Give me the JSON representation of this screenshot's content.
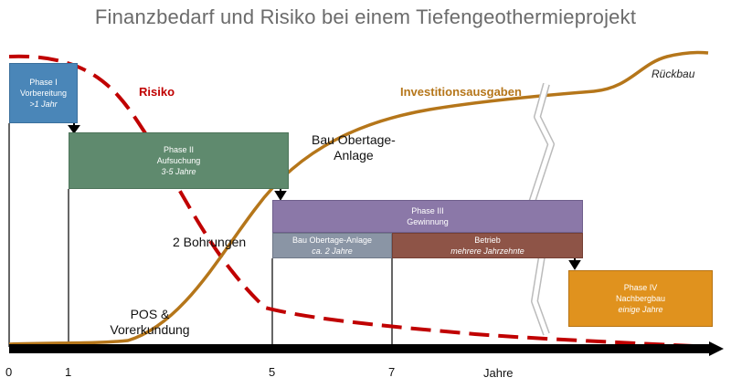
{
  "title": "Finanzbedarf und Risiko bei einem Tiefengeothermieprojekt",
  "phases": {
    "p1": {
      "name": "Phase I",
      "desc": "Vorbereitung",
      "dur": ">1 Jahr",
      "color": "#4a86b8"
    },
    "p2": {
      "name": "Phase II",
      "desc": "Aufsuchung",
      "dur": "3-5 Jahre",
      "color": "#5f8a6e"
    },
    "p3": {
      "name": "Phase III",
      "desc": "Gewinnung",
      "color": "#8b78a8"
    },
    "p3a": {
      "desc": "Bau Obertage-Anlage",
      "dur": "ca. 2 Jahre",
      "color": "#8a95a5"
    },
    "p3b": {
      "desc": "Betrieb",
      "dur": "mehrere Jahrzehnte",
      "color": "#8e5447"
    },
    "p4": {
      "name": "Phase IV",
      "desc": "Nachbergbau",
      "dur": "einige Jahre",
      "color": "#e0921e"
    }
  },
  "labels": {
    "risiko": "Risiko",
    "invest": "Investitionsausgaben",
    "rueckbau": "Rückbau",
    "bau_line1": "Bau Obertage-",
    "bau_line2": "Anlage",
    "bohrungen": "2 Bohrungen",
    "pos_line1": "POS &",
    "pos_line2": "Vorerkundung"
  },
  "axis": {
    "ticks": [
      "0",
      "1",
      "5",
      "7"
    ],
    "label": "Jahre"
  },
  "colors": {
    "risk": "#c00000",
    "invest": "#b5761a",
    "axis": "#000000"
  }
}
